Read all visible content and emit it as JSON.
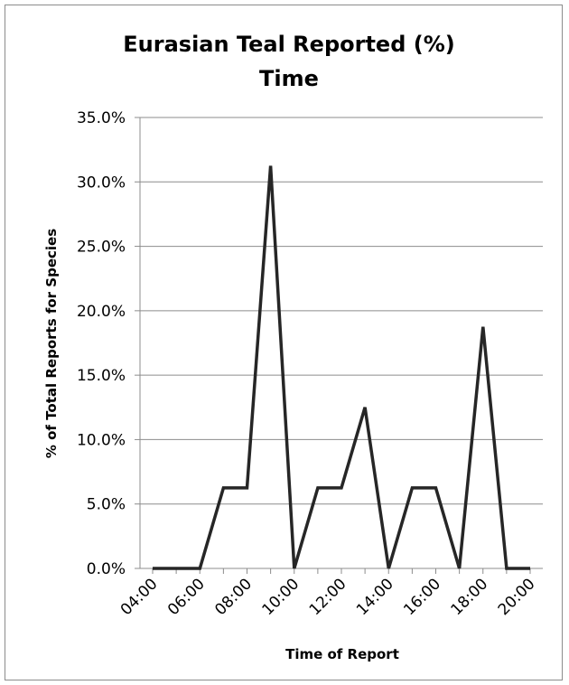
{
  "chart_data": {
    "type": "line",
    "title": [
      "Eurasian Teal Reported (%)",
      "Time"
    ],
    "xlabel": "Time of Report",
    "ylabel": "% of Total Reports for Species",
    "x": [
      "04:00",
      "05:00",
      "06:00",
      "07:00",
      "08:00",
      "09:00",
      "10:00",
      "11:00",
      "12:00",
      "13:00",
      "14:00",
      "15:00",
      "16:00",
      "17:00",
      "18:00",
      "19:00",
      "20:00"
    ],
    "x_tick_labels": [
      "04:00",
      "06:00",
      "08:00",
      "10:00",
      "12:00",
      "14:00",
      "16:00",
      "18:00",
      "20:00"
    ],
    "y_tick_labels": [
      "0.0%",
      "5.0%",
      "10.0%",
      "15.0%",
      "20.0%",
      "25.0%",
      "30.0%",
      "35.0%"
    ],
    "ylim": [
      0,
      35
    ],
    "grid": true,
    "legend": "none",
    "series": [
      {
        "values": [
          0,
          0,
          0,
          6.25,
          6.25,
          31.25,
          0,
          6.25,
          6.25,
          12.5,
          0,
          6.25,
          6.25,
          0,
          18.75,
          0,
          0
        ],
        "color": "#262626"
      }
    ]
  }
}
